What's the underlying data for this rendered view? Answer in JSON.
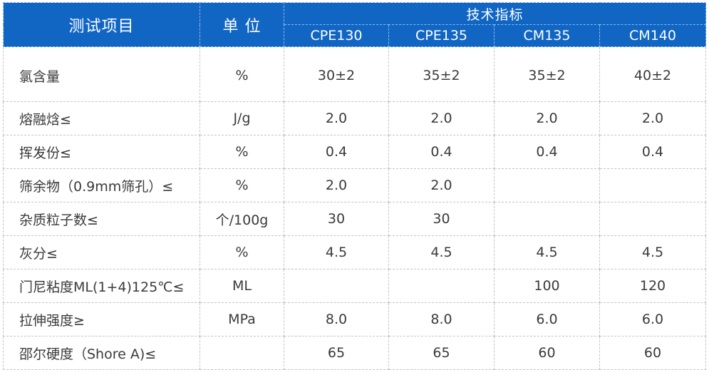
{
  "header": {
    "item_label": "测试项目",
    "unit_label": "单 位",
    "group_label": "技术指标",
    "columns": [
      "CPE130",
      "CPE135",
      "CM135",
      "CM140"
    ]
  },
  "rows": [
    {
      "name": "氯含量",
      "unit": "%",
      "values": [
        "30±2",
        "35±2",
        "35±2",
        "40±2"
      ]
    },
    {
      "name": "熔融焓≤",
      "unit": "J/g",
      "values": [
        "2.0",
        "2.0",
        "2.0",
        "2.0"
      ]
    },
    {
      "name": "挥发份≤",
      "unit": "%",
      "values": [
        "0.4",
        "0.4",
        "0.4",
        "0.4"
      ]
    },
    {
      "name": "筛余物（0.9mm筛孔）≤",
      "unit": "%",
      "values": [
        "2.0",
        "2.0",
        "",
        ""
      ]
    },
    {
      "name": "杂质粒子数≤",
      "unit": "个/100g",
      "values": [
        "30",
        "30",
        "",
        ""
      ]
    },
    {
      "name": "灰分≤",
      "unit": "%",
      "values": [
        "4.5",
        "4.5",
        "4.5",
        "4.5"
      ]
    },
    {
      "name": "门尼粘度ML(1+4)125℃≤",
      "unit": "ML",
      "values": [
        "",
        "",
        "100",
        "120"
      ]
    },
    {
      "name": "拉伸强度≥",
      "unit": "MPa",
      "values": [
        "8.0",
        "8.0",
        "6.0",
        "6.0"
      ]
    },
    {
      "name": "邵尔硬度（Shore A)≤",
      "unit": "",
      "values": [
        "65",
        "65",
        "60",
        "60"
      ]
    }
  ],
  "colors": {
    "header_bg": "#1166c4",
    "header_text": "#ffffff",
    "body_text": "#3a3a3a",
    "grid": "#c4c4c4"
  }
}
